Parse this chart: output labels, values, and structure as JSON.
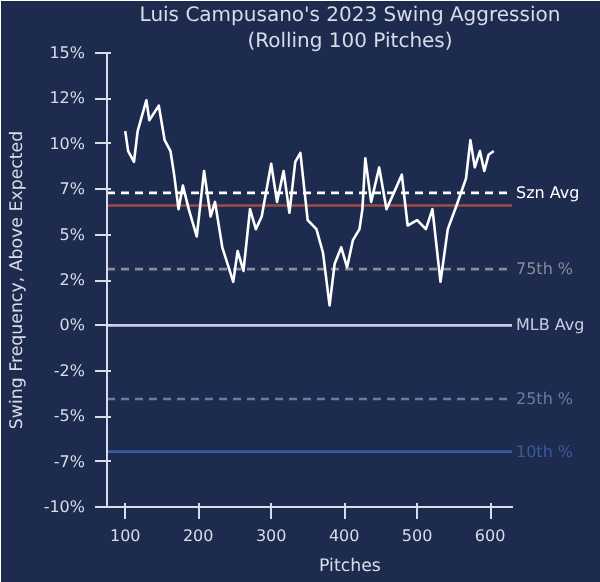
{
  "chart_data": {
    "type": "line",
    "title": "Luis Campusano's 2023 Swing Aggression",
    "subtitle": "(Rolling 100 Pitches)",
    "xlabel": "Pitches",
    "ylabel": "Swing Frequency, Above Expected",
    "xlim": [
      75,
      630
    ],
    "xticks": [
      100,
      200,
      300,
      400,
      500,
      600
    ],
    "ylim": [
      -10,
      15
    ],
    "yticks": [
      {
        "value": -10,
        "label": "-10%"
      },
      {
        "value": -7.5,
        "label": "-7%"
      },
      {
        "value": -5,
        "label": "-5%"
      },
      {
        "value": -2.5,
        "label": "-2%"
      },
      {
        "value": 0,
        "label": "0%"
      },
      {
        "value": 2.5,
        "label": "2%"
      },
      {
        "value": 5,
        "label": "5%"
      },
      {
        "value": 7.5,
        "label": "7%"
      },
      {
        "value": 10,
        "label": "10%"
      },
      {
        "value": 12.5,
        "label": "12%"
      },
      {
        "value": 15,
        "label": "15%"
      }
    ],
    "grid": false,
    "marker": "none",
    "line_style": "solid",
    "series": [
      {
        "color": "#ffffff",
        "x": [
          100,
          104,
          112,
          117,
          129,
          133,
          146,
          154,
          162,
          167,
          173,
          179,
          187,
          198,
          208,
          217,
          223,
          233,
          248,
          254,
          262,
          271,
          279,
          287,
          300,
          308,
          317,
          325,
          333,
          340,
          350,
          362,
          371,
          380,
          387,
          396,
          404,
          412,
          421,
          425,
          429,
          437,
          448,
          458,
          467,
          479,
          487,
          500,
          512,
          521,
          532,
          542,
          554,
          567,
          573,
          579,
          586,
          592,
          598,
          605
        ],
        "values": [
          10.7,
          9.6,
          9.0,
          10.7,
          12.4,
          11.3,
          12.1,
          10.2,
          9.6,
          8.3,
          6.4,
          7.7,
          6.4,
          4.9,
          8.5,
          6.0,
          6.8,
          4.3,
          2.4,
          4.1,
          3.0,
          6.4,
          5.3,
          6.0,
          8.9,
          6.8,
          8.5,
          6.2,
          9.0,
          9.5,
          5.8,
          5.3,
          4.0,
          1.1,
          3.4,
          4.3,
          3.2,
          4.7,
          5.3,
          6.4,
          9.2,
          6.8,
          8.7,
          6.4,
          7.2,
          8.3,
          5.5,
          5.8,
          5.3,
          6.4,
          2.4,
          5.3,
          6.6,
          8.1,
          10.2,
          8.7,
          9.6,
          8.5,
          9.4,
          9.6
        ]
      }
    ],
    "ref_lines": [
      {
        "axis": "y",
        "value": 7.3,
        "label": "Szn Avg",
        "color": "#ffffff",
        "line_style": "dashed"
      },
      {
        "axis": "y",
        "value": 6.6,
        "color": "#a04a4a",
        "line_style": "solid"
      },
      {
        "axis": "y",
        "value": 3.1,
        "label": "75th %",
        "color": "#8a8a9a",
        "line_style": "dashed"
      },
      {
        "axis": "y",
        "value": 0,
        "label": "MLB Avg",
        "color": "#c8cce0",
        "line_style": "solid"
      },
      {
        "axis": "y",
        "value": -4.05,
        "label": "25th %",
        "color": "#6a7aa0",
        "line_style": "dashed"
      },
      {
        "axis": "y",
        "value": -6.95,
        "label": "10th %",
        "color": "#3d5a9e",
        "line_style": "solid"
      }
    ]
  }
}
